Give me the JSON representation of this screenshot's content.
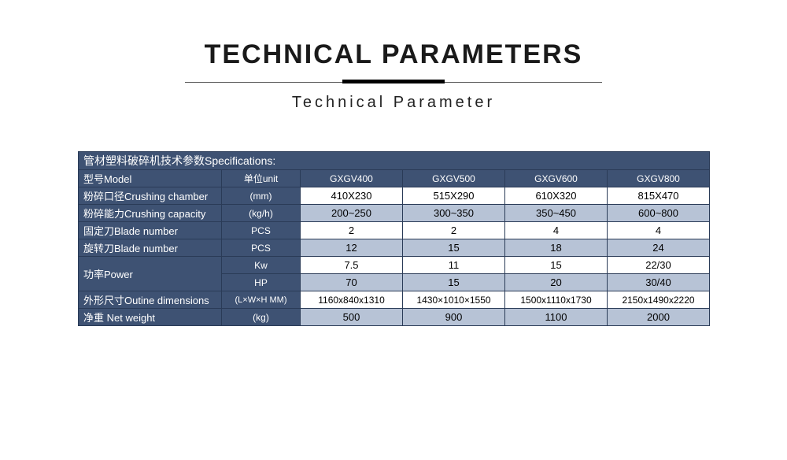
{
  "title": "TECHNICAL PARAMETERS",
  "subtitle": "Technical Parameter",
  "spec_header": "管材塑料破碎机技术参数Specifications:",
  "columns": {
    "label": "型号Model",
    "unit": "单位unit",
    "models": [
      "GXGV400",
      "GXGV500",
      "GXGV600",
      "GXGV800"
    ]
  },
  "rows": [
    {
      "label": "粉碎口径Crushing chamber",
      "unit": "(mm)",
      "vals": [
        "410X230",
        "515X290",
        "610X320",
        "815X470"
      ],
      "alt": false
    },
    {
      "label": "粉碎能力Crushing capacity",
      "unit": "(kg/h)",
      "vals": [
        "200~250",
        "300~350",
        "350~450",
        "600~800"
      ],
      "alt": true
    },
    {
      "label": "固定刀Blade number",
      "unit": "PCS",
      "vals": [
        "2",
        "2",
        "4",
        "4"
      ],
      "alt": false
    },
    {
      "label": "旋转刀Blade number",
      "unit": "PCS",
      "vals": [
        "12",
        "15",
        "18",
        "24"
      ],
      "alt": true
    }
  ],
  "power": {
    "label": "功率Power",
    "r1": {
      "unit": "Kw",
      "vals": [
        "7.5",
        "11",
        "15",
        "22/30"
      ],
      "alt": false
    },
    "r2": {
      "unit": "HP",
      "vals": [
        "70",
        "15",
        "20",
        "30/40"
      ],
      "alt": true
    }
  },
  "dims": {
    "label": "外形尺寸Outine dimensions",
    "unit": "(L×W×H MM)",
    "vals": [
      "1160x840x1310",
      "1430×1010×1550",
      "1500x1110x1730",
      "2150x1490x2220"
    ],
    "alt": false
  },
  "weight": {
    "label": "净重 Net weight",
    "unit": "(kg)",
    "vals": [
      "500",
      "900",
      "1100",
      "2000"
    ],
    "alt": true
  },
  "colors": {
    "header_bg": "#3e5273",
    "header_fg": "#ffffff",
    "alt_bg": "#b7c3d6",
    "border": "#2a3b57",
    "bg": "#ffffff"
  }
}
